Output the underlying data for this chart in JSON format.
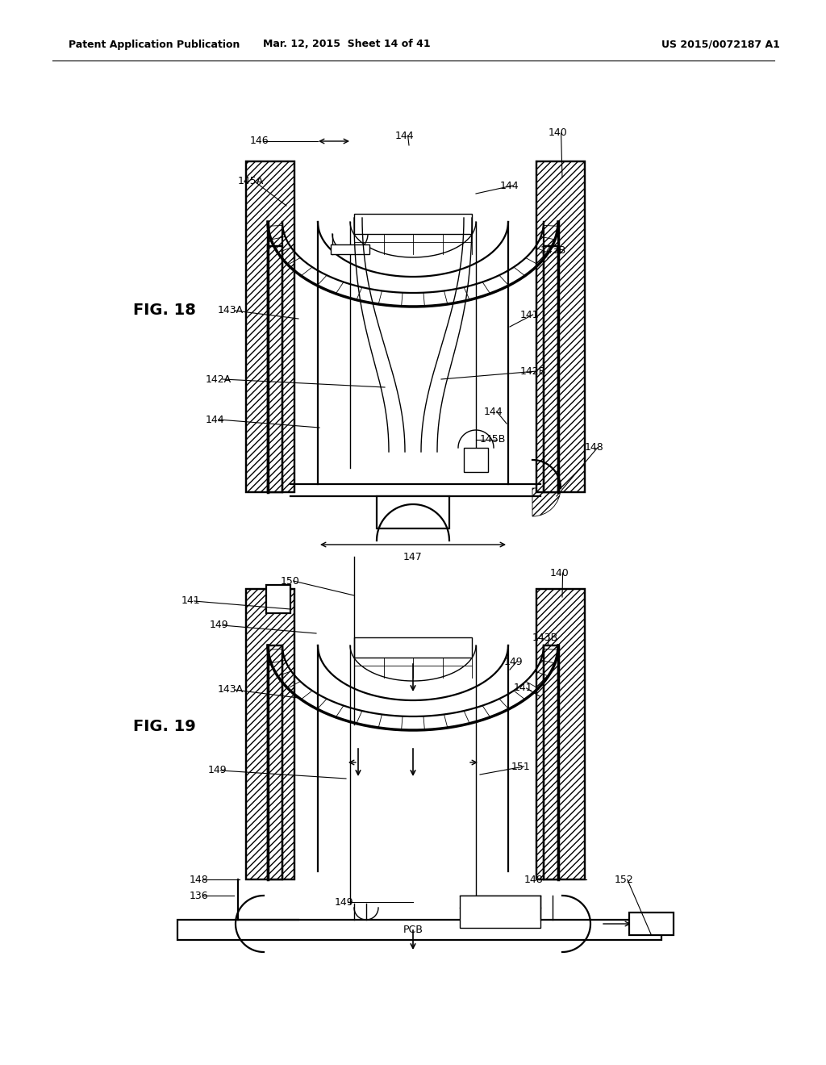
{
  "bg_color": "#ffffff",
  "lc": "#000000",
  "header_left": "Patent Application Publication",
  "header_mid": "Mar. 12, 2015  Sheet 14 of 41",
  "header_right": "US 2015/0072187 A1",
  "fig18_label": "FIG. 18",
  "fig19_label": "FIG. 19",
  "lw_thick": 2.5,
  "lw_med": 1.6,
  "lw_thin": 1.0,
  "lw_vthin": 0.6,
  "fs_label": 9,
  "fs_fig": 14,
  "fs_hdr": 9
}
